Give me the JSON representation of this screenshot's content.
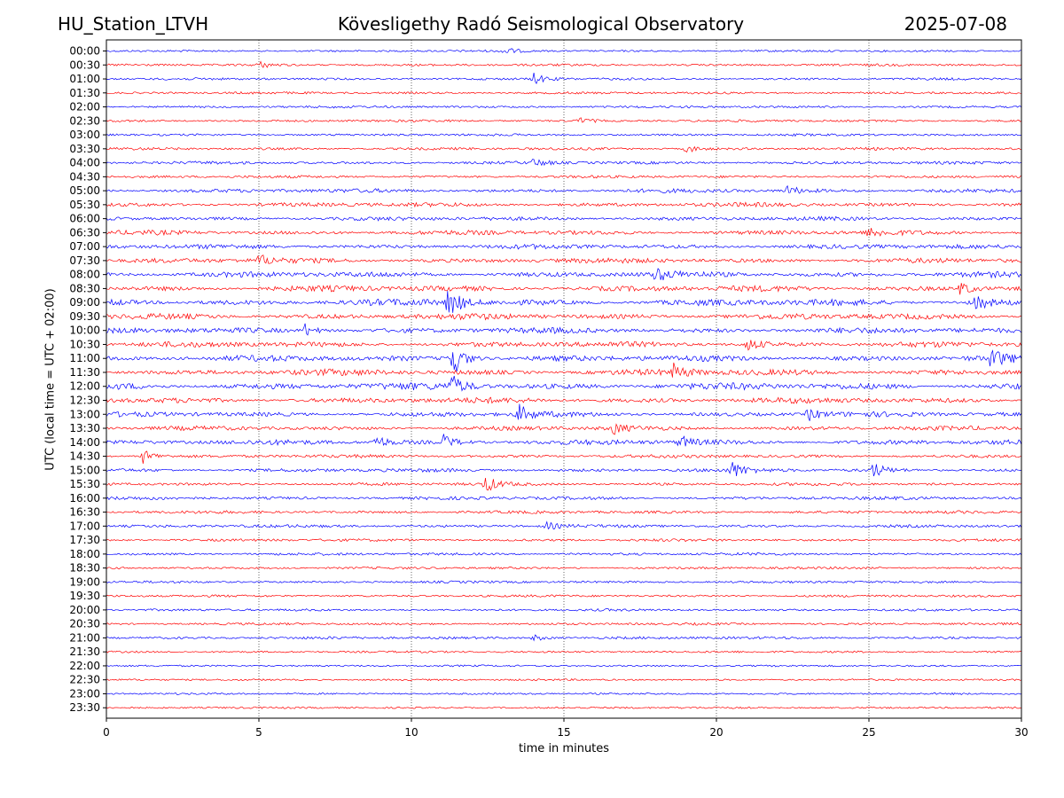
{
  "header": {
    "station": "HU_Station_LTVH",
    "title": "Kövesligethy Radó Seismological Observatory",
    "date": "2025-07-08"
  },
  "chart_data": {
    "type": "line",
    "title": "Kövesligethy Radó Seismological Observatory",
    "xlabel": "time in minutes",
    "ylabel": "UTC (local time = UTC + 02:00)",
    "xlim": [
      0,
      30
    ],
    "xticks": [
      0,
      5,
      10,
      15,
      20,
      25,
      30
    ],
    "grid": "vertical dotted lines at x ticks",
    "colors": {
      "even_rows": "#0000ff",
      "odd_rows": "#ff0000"
    },
    "rows": [
      {
        "label": "00:00",
        "activity": 0.15
      },
      {
        "label": "00:30",
        "activity": 0.2
      },
      {
        "label": "01:00",
        "activity": 0.2
      },
      {
        "label": "01:30",
        "activity": 0.2
      },
      {
        "label": "02:00",
        "activity": 0.2
      },
      {
        "label": "02:30",
        "activity": 0.2
      },
      {
        "label": "03:00",
        "activity": 0.2
      },
      {
        "label": "03:30",
        "activity": 0.25
      },
      {
        "label": "04:00",
        "activity": 0.3
      },
      {
        "label": "04:30",
        "activity": 0.25
      },
      {
        "label": "05:00",
        "activity": 0.45
      },
      {
        "label": "05:30",
        "activity": 0.5
      },
      {
        "label": "06:00",
        "activity": 0.45
      },
      {
        "label": "06:30",
        "activity": 0.55
      },
      {
        "label": "07:00",
        "activity": 0.55
      },
      {
        "label": "07:30",
        "activity": 0.6
      },
      {
        "label": "08:00",
        "activity": 0.7
      },
      {
        "label": "08:30",
        "activity": 0.75
      },
      {
        "label": "09:00",
        "activity": 0.85
      },
      {
        "label": "09:30",
        "activity": 0.75
      },
      {
        "label": "10:00",
        "activity": 0.7
      },
      {
        "label": "10:30",
        "activity": 0.7
      },
      {
        "label": "11:00",
        "activity": 0.75
      },
      {
        "label": "11:30",
        "activity": 0.8
      },
      {
        "label": "12:00",
        "activity": 0.9
      },
      {
        "label": "12:30",
        "activity": 0.7
      },
      {
        "label": "13:00",
        "activity": 0.6
      },
      {
        "label": "13:30",
        "activity": 0.5
      },
      {
        "label": "14:00",
        "activity": 0.6
      },
      {
        "label": "14:30",
        "activity": 0.35
      },
      {
        "label": "15:00",
        "activity": 0.4
      },
      {
        "label": "15:30",
        "activity": 0.3
      },
      {
        "label": "16:00",
        "activity": 0.35
      },
      {
        "label": "16:30",
        "activity": 0.3
      },
      {
        "label": "17:00",
        "activity": 0.3
      },
      {
        "label": "17:30",
        "activity": 0.25
      },
      {
        "label": "18:00",
        "activity": 0.25
      },
      {
        "label": "18:30",
        "activity": 0.2
      },
      {
        "label": "19:00",
        "activity": 0.2
      },
      {
        "label": "19:30",
        "activity": 0.2
      },
      {
        "label": "20:00",
        "activity": 0.2
      },
      {
        "label": "20:30",
        "activity": 0.2
      },
      {
        "label": "21:00",
        "activity": 0.25
      },
      {
        "label": "21:30",
        "activity": 0.15
      },
      {
        "label": "22:00",
        "activity": 0.12
      },
      {
        "label": "22:30",
        "activity": 0.12
      },
      {
        "label": "23:00",
        "activity": 0.12
      },
      {
        "label": "23:30",
        "activity": 0.12
      }
    ],
    "events": [
      {
        "row": "00:00",
        "minute": 13.0,
        "amplitude": 0.5
      },
      {
        "row": "00:30",
        "minute": 5.0,
        "amplitude": 0.4
      },
      {
        "row": "01:00",
        "minute": 14.0,
        "amplitude": 0.7
      },
      {
        "row": "02:30",
        "minute": 15.5,
        "amplitude": 0.4
      },
      {
        "row": "03:30",
        "minute": 19.0,
        "amplitude": 0.5
      },
      {
        "row": "04:00",
        "minute": 14.0,
        "amplitude": 0.5
      },
      {
        "row": "05:00",
        "minute": 22.3,
        "amplitude": 0.6
      },
      {
        "row": "06:30",
        "minute": 25.0,
        "amplitude": 0.6
      },
      {
        "row": "07:30",
        "minute": 5.0,
        "amplitude": 0.7
      },
      {
        "row": "08:00",
        "minute": 18.0,
        "amplitude": 0.8
      },
      {
        "row": "08:30",
        "minute": 28.0,
        "amplitude": 0.8
      },
      {
        "row": "09:00",
        "minute": 11.2,
        "amplitude": 2.0
      },
      {
        "row": "09:00",
        "minute": 28.5,
        "amplitude": 0.9
      },
      {
        "row": "10:00",
        "minute": 6.5,
        "amplitude": 0.8
      },
      {
        "row": "10:30",
        "minute": 21.0,
        "amplitude": 0.8
      },
      {
        "row": "11:00",
        "minute": 11.25,
        "amplitude": 3.0
      },
      {
        "row": "11:00",
        "minute": 29.0,
        "amplitude": 1.2
      },
      {
        "row": "11:30",
        "minute": 18.6,
        "amplitude": 0.9
      },
      {
        "row": "12:00",
        "minute": 11.25,
        "amplitude": 1.5
      },
      {
        "row": "13:00",
        "minute": 13.5,
        "amplitude": 1.2
      },
      {
        "row": "13:00",
        "minute": 23.0,
        "amplitude": 0.8
      },
      {
        "row": "13:30",
        "minute": 16.6,
        "amplitude": 0.7
      },
      {
        "row": "14:00",
        "minute": 8.8,
        "amplitude": 0.9
      },
      {
        "row": "14:00",
        "minute": 11.0,
        "amplitude": 1.0
      },
      {
        "row": "14:00",
        "minute": 18.8,
        "amplitude": 0.8
      },
      {
        "row": "14:30",
        "minute": 1.2,
        "amplitude": 0.9
      },
      {
        "row": "15:00",
        "minute": 20.5,
        "amplitude": 1.0
      },
      {
        "row": "15:00",
        "minute": 25.1,
        "amplitude": 1.0
      },
      {
        "row": "15:30",
        "minute": 12.4,
        "amplitude": 1.1
      },
      {
        "row": "17:00",
        "minute": 14.4,
        "amplitude": 0.5
      },
      {
        "row": "21:00",
        "minute": 14.0,
        "amplitude": 0.4
      }
    ]
  }
}
